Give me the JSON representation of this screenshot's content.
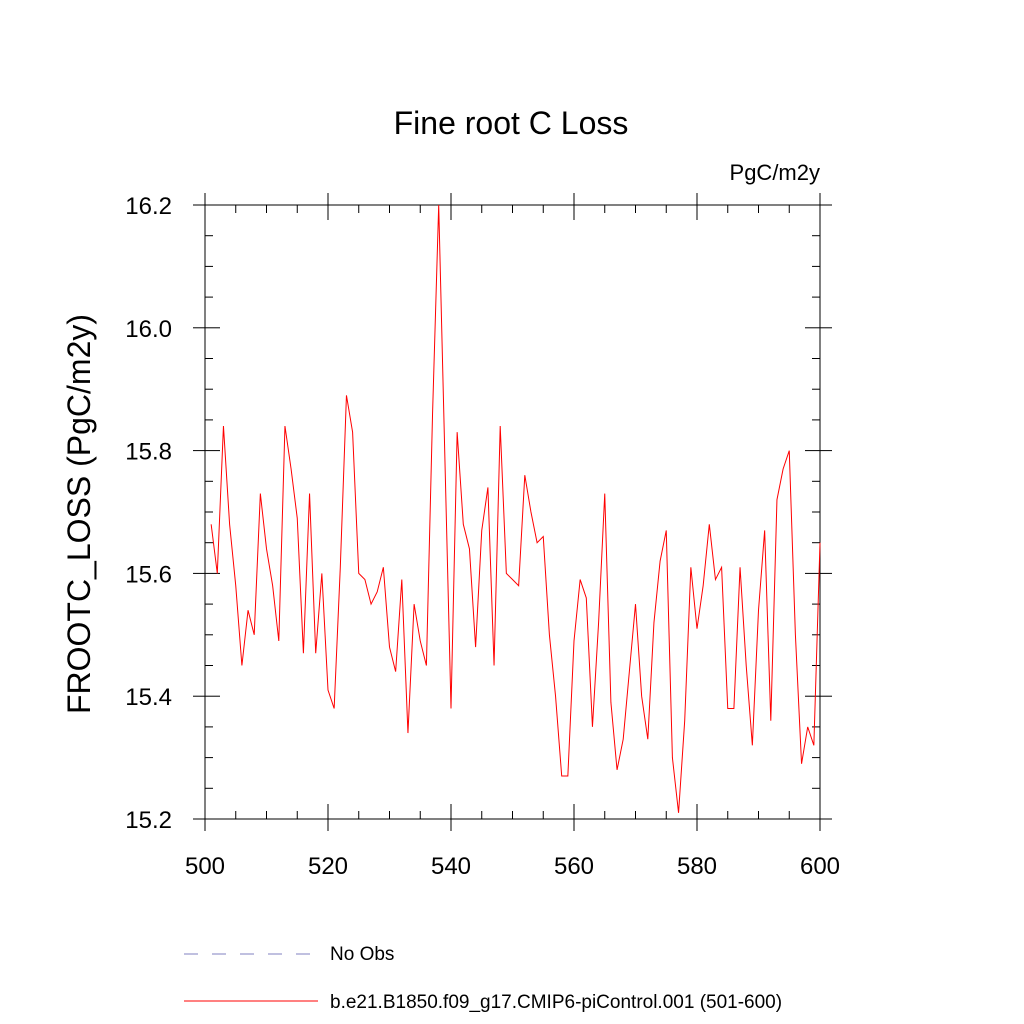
{
  "chart_data": {
    "type": "line",
    "title": "Fine root C Loss",
    "units_label": "PgC/m2y",
    "ylabel": "FROOTC_LOSS  (PgC/m2y)",
    "xlabel": "",
    "xlim": [
      500,
      600
    ],
    "ylim": [
      15.2,
      16.2
    ],
    "x_ticks": [
      500,
      520,
      540,
      560,
      580,
      600
    ],
    "y_ticks": [
      15.2,
      15.4,
      15.6,
      15.8,
      16.0,
      16.2
    ],
    "x_tick_labels": [
      "500",
      "520",
      "540",
      "560",
      "580",
      "600"
    ],
    "y_tick_labels": [
      "15.2",
      "15.4",
      "15.6",
      "15.8",
      "16.0",
      "16.2"
    ],
    "grid": false,
    "legend": {
      "placement": "bottom",
      "entries": [
        {
          "label": "No Obs",
          "style": "dashed",
          "color": "#8080c0"
        },
        {
          "label": "b.e21.B1850.f09_g17.CMIP6-piControl.001 (501-600)",
          "style": "solid",
          "color": "#ff0000"
        }
      ]
    },
    "series": [
      {
        "name": "b.e21.B1850.f09_g17.CMIP6-piControl.001 (501-600)",
        "color": "#ff0000",
        "x": [
          501,
          502,
          503,
          504,
          505,
          506,
          507,
          508,
          509,
          510,
          511,
          512,
          513,
          514,
          515,
          516,
          517,
          518,
          519,
          520,
          521,
          522,
          523,
          524,
          525,
          526,
          527,
          528,
          529,
          530,
          531,
          532,
          533,
          534,
          535,
          536,
          537,
          538,
          539,
          540,
          541,
          542,
          543,
          544,
          545,
          546,
          547,
          548,
          549,
          550,
          551,
          552,
          553,
          554,
          555,
          556,
          557,
          558,
          559,
          560,
          561,
          562,
          563,
          564,
          565,
          566,
          567,
          568,
          569,
          570,
          571,
          572,
          573,
          574,
          575,
          576,
          577,
          578,
          579,
          580,
          581,
          582,
          583,
          584,
          585,
          586,
          587,
          588,
          589,
          590,
          591,
          592,
          593,
          594,
          595,
          596,
          597,
          598,
          599,
          600
        ],
        "values": [
          15.68,
          15.6,
          15.84,
          15.68,
          15.58,
          15.45,
          15.54,
          15.5,
          15.73,
          15.64,
          15.58,
          15.49,
          15.84,
          15.77,
          15.69,
          15.47,
          15.73,
          15.47,
          15.6,
          15.41,
          15.38,
          15.61,
          15.89,
          15.83,
          15.6,
          15.59,
          15.55,
          15.57,
          15.61,
          15.48,
          15.44,
          15.59,
          15.34,
          15.55,
          15.49,
          15.45,
          15.86,
          16.2,
          15.79,
          15.38,
          15.83,
          15.68,
          15.64,
          15.48,
          15.67,
          15.74,
          15.45,
          15.84,
          15.6,
          15.59,
          15.58,
          15.76,
          15.7,
          15.65,
          15.66,
          15.5,
          15.4,
          15.27,
          15.27,
          15.49,
          15.59,
          15.56,
          15.35,
          15.52,
          15.73,
          15.39,
          15.28,
          15.33,
          15.44,
          15.55,
          15.4,
          15.33,
          15.52,
          15.62,
          15.67,
          15.3,
          15.21,
          15.36,
          15.61,
          15.51,
          15.58,
          15.68,
          15.59,
          15.61,
          15.38,
          15.38,
          15.61,
          15.45,
          15.32,
          15.54,
          15.67,
          15.36,
          15.72,
          15.77,
          15.8,
          15.5,
          15.29,
          15.35,
          15.32,
          15.65
        ]
      }
    ]
  }
}
